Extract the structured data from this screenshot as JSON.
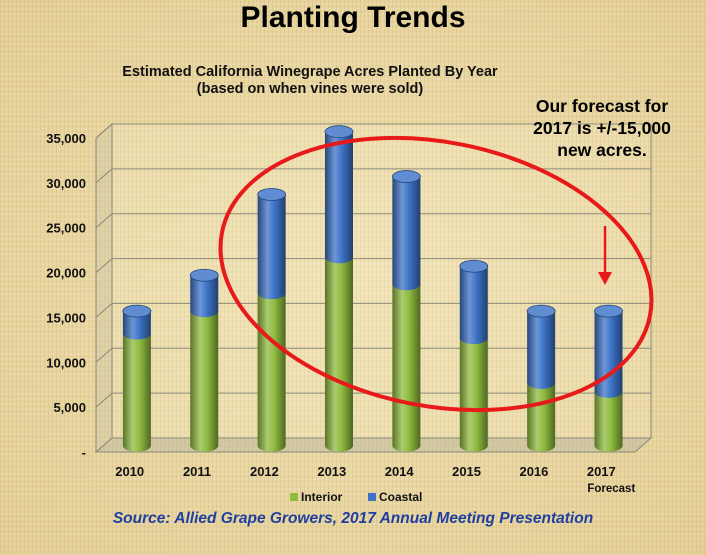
{
  "slide": {
    "title": "Planting Trends",
    "forecast_note": [
      "Our forecast for",
      "2017 is +/-15,000",
      "new acres."
    ],
    "source": "Source: Allied Grape Growers, 2017 Annual Meeting Presentation"
  },
  "colors": {
    "interior": "#8fbb3f",
    "coastal": "#3d73c7",
    "annotation": "#e81919"
  },
  "chart_data": {
    "type": "bar",
    "stacked": true,
    "title": "Estimated California Winegrape Acres Planted By Year",
    "subtitle": "(based on when vines were sold)",
    "categories": [
      "2010",
      "2011",
      "2012",
      "2013",
      "2014",
      "2015",
      "2016",
      "2017"
    ],
    "category_sublabels": [
      "",
      "",
      "",
      "",
      "",
      "",
      "",
      "Forecast"
    ],
    "series": [
      {
        "name": "Interior",
        "values": [
          12500,
          15000,
          17000,
          21000,
          18000,
          12000,
          7000,
          6000
        ]
      },
      {
        "name": "Coastal",
        "values": [
          2500,
          4000,
          11000,
          14000,
          12000,
          8000,
          8000,
          9000
        ]
      }
    ],
    "ylim": [
      0,
      35000
    ],
    "yticks": [
      "-",
      "5,000",
      "10,000",
      "15,000",
      "20,000",
      "25,000",
      "30,000",
      "35,000"
    ],
    "xlabel": "",
    "ylabel": "",
    "grid": true,
    "legend": "bottom"
  }
}
